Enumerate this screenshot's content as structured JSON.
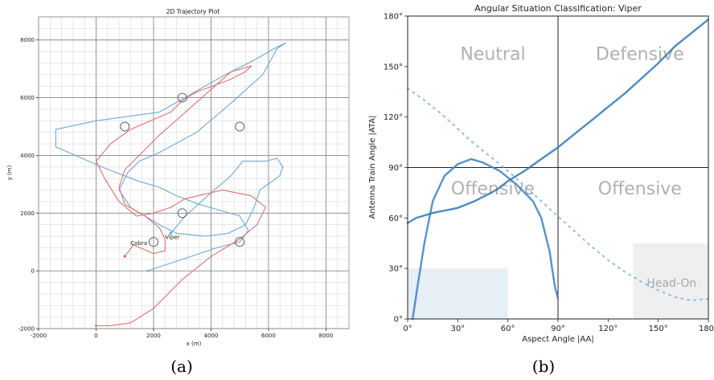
{
  "chart_data": [
    {
      "type": "line",
      "title": "2D Trajectory Plot",
      "xlabel": "x (m)",
      "ylabel": "y (m)",
      "xlim": [
        -2000,
        8800
      ],
      "ylim": [
        -2000,
        8800
      ],
      "xticks": [
        -2000,
        0,
        2000,
        4000,
        6000,
        8000
      ],
      "yticks": [
        -2000,
        0,
        2000,
        4000,
        6000,
        8000
      ],
      "grid": true,
      "caption": "(a)",
      "annotations": [
        {
          "text": "Viper",
          "x": 2400,
          "y": 1100
        },
        {
          "text": "Cobra",
          "x": 1200,
          "y": 900
        }
      ],
      "circle_markers": [
        [
          1000,
          5000
        ],
        [
          3000,
          6000
        ],
        [
          5000,
          5000
        ],
        [
          3000,
          2000
        ],
        [
          2000,
          1000
        ],
        [
          5000,
          1000
        ]
      ],
      "series": [
        {
          "name": "Viper",
          "color": "#6fa8d6",
          "x": [
            1800,
            4200,
            5000,
            5300,
            5000,
            3600,
            2800,
            2200,
            1500,
            200,
            -1400,
            -1400,
            0,
            2200,
            4500,
            5500,
            6200,
            6600,
            6300,
            5800,
            4800,
            3500,
            2200,
            1500,
            1100,
            800,
            1200,
            2200,
            2800,
            3800,
            4600,
            5200,
            5500,
            5700,
            6400,
            6500,
            6300,
            5900,
            5100,
            4700,
            4000,
            3100,
            2600
          ],
          "y": [
            0,
            800,
            1000,
            1400,
            1900,
            2300,
            2600,
            2900,
            3100,
            3600,
            4300,
            4900,
            5200,
            5500,
            6800,
            7300,
            7700,
            7900,
            7700,
            6800,
            5900,
            4800,
            4100,
            3800,
            3400,
            2800,
            2200,
            1600,
            1300,
            1200,
            1300,
            1600,
            2200,
            2800,
            3300,
            3600,
            3900,
            3800,
            3800,
            3300,
            2700,
            1900,
            1300
          ]
        },
        {
          "name": "Cobra",
          "color": "#e07070",
          "x": [
            0,
            500,
            1200,
            2000,
            3000,
            4000,
            5000,
            5600,
            5900,
            5400,
            4400,
            3100,
            2600,
            2000,
            1400,
            800,
            300,
            0,
            500,
            1200,
            1900,
            2600,
            3000,
            3500,
            4600,
            5200,
            5400,
            4700,
            3900,
            3000,
            2200,
            1600,
            1000,
            800,
            1000,
            1700,
            2200,
            2400,
            2400,
            2000,
            1300,
            1000
          ],
          "y": [
            -1900,
            -1900,
            -1800,
            -1300,
            -300,
            500,
            1100,
            1600,
            2200,
            2600,
            2800,
            2500,
            2200,
            2000,
            1900,
            2400,
            3200,
            3800,
            4400,
            4900,
            5200,
            5500,
            5900,
            6200,
            6600,
            6900,
            7100,
            6900,
            6200,
            5400,
            4700,
            4100,
            3500,
            2900,
            2300,
            1900,
            1500,
            1100,
            700,
            600,
            900,
            500
          ]
        }
      ]
    },
    {
      "type": "scatter",
      "title": "Angular Situation Classification: Viper",
      "xlabel": "Aspect Angle |AA|",
      "ylabel": "Antenna Train Angle |ATA|",
      "xlim": [
        0,
        180
      ],
      "ylim": [
        0,
        180
      ],
      "xticks": [
        "0°",
        "30°",
        "60°",
        "90°",
        "120°",
        "150°",
        "180°"
      ],
      "yticks": [
        "0°",
        "30°",
        "60°",
        "90°",
        "120°",
        "150°",
        "180°"
      ],
      "regions": [
        "Neutral",
        "Defensive",
        "Offensive",
        "Offensive",
        "Head-On"
      ],
      "caption": "(b)",
      "series": [
        {
          "color": "#2f78b5",
          "x": [
            0,
            5,
            15,
            25,
            30,
            40,
            50,
            55,
            60,
            70,
            80,
            90,
            100,
            110,
            120,
            130,
            140,
            150,
            160,
            170,
            180
          ],
          "y": [
            57,
            60,
            63,
            65,
            66,
            70,
            75,
            78,
            82,
            88,
            95,
            102,
            110,
            118,
            126,
            134,
            143,
            152,
            162,
            170,
            178
          ]
        },
        {
          "color": "#7fb2da",
          "x": [
            0,
            10,
            20,
            30,
            40,
            50,
            60,
            70,
            80,
            90,
            100,
            110,
            120,
            130,
            140,
            150,
            160,
            170,
            180
          ],
          "y": [
            137,
            130,
            122,
            113,
            104,
            96,
            88,
            79,
            70,
            61,
            52,
            43,
            35,
            28,
            22,
            17,
            13,
            11,
            12
          ]
        },
        {
          "color": "#3b7fbf",
          "x": [
            3,
            6,
            10,
            15,
            22,
            30,
            38,
            45,
            55,
            65,
            75,
            80,
            85,
            88,
            90
          ],
          "y": [
            0,
            20,
            45,
            70,
            85,
            92,
            95,
            93,
            88,
            80,
            70,
            60,
            40,
            20,
            12
          ]
        }
      ]
    }
  ]
}
